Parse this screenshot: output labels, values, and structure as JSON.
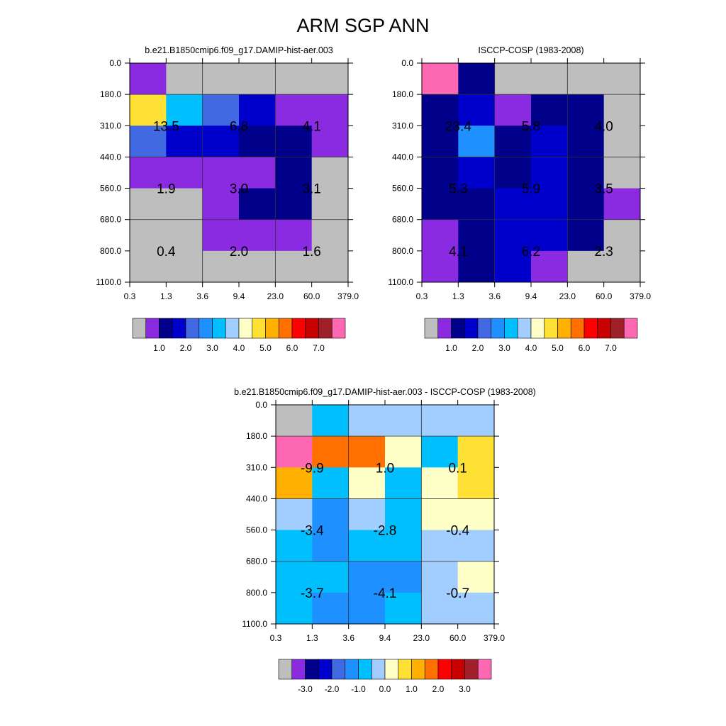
{
  "figure": {
    "title": "ARM SGP ANN"
  },
  "chart_data": [
    {
      "type": "heatmap",
      "title": "b.e21.B1850cmip6.f09_g17.DAMIP-hist-aer.003",
      "x_tick_labels": [
        "0.3",
        "1.3",
        "3.6",
        "9.4",
        "23.0",
        "60.0",
        "379.0"
      ],
      "y_tick_labels": [
        "0.0",
        "180.0",
        "310.0",
        "440.0",
        "560.0",
        "680.0",
        "800.0",
        "1100.0"
      ],
      "cell_colors": [
        [
          "#8A2BE2",
          "#BEBEBE",
          "#BEBEBE",
          "#BEBEBE",
          "#BEBEBE",
          "#BEBEBE"
        ],
        [
          "#FFE135",
          "#00BFFF",
          "#4169E1",
          "#0000CD",
          "#8A2BE2",
          "#8A2BE2"
        ],
        [
          "#4169E1",
          "#0000CD",
          "#0000CD",
          "#00008B",
          "#00008B",
          "#8A2BE2"
        ],
        [
          "#8A2BE2",
          "#8A2BE2",
          "#8A2BE2",
          "#8A2BE2",
          "#00008B",
          "#BEBEBE"
        ],
        [
          "#BEBEBE",
          "#BEBEBE",
          "#8A2BE2",
          "#00008B",
          "#00008B",
          "#BEBEBE"
        ],
        [
          "#BEBEBE",
          "#BEBEBE",
          "#8A2BE2",
          "#8A2BE2",
          "#8A2BE2",
          "#BEBEBE"
        ],
        [
          "#BEBEBE",
          "#BEBEBE",
          "#BEBEBE",
          "#BEBEBE",
          "#BEBEBE",
          "#BEBEBE"
        ]
      ],
      "block_values": [
        {
          "text": "13.5",
          "x_block": 0,
          "y_block": 0
        },
        {
          "text": "6.8",
          "x_block": 1,
          "y_block": 0
        },
        {
          "text": "4.1",
          "x_block": 2,
          "y_block": 0
        },
        {
          "text": "1.9",
          "x_block": 0,
          "y_block": 1
        },
        {
          "text": "3.0",
          "x_block": 1,
          "y_block": 1
        },
        {
          "text": "3.1",
          "x_block": 2,
          "y_block": 1
        },
        {
          "text": "0.4",
          "x_block": 0,
          "y_block": 2
        },
        {
          "text": "2.0",
          "x_block": 1,
          "y_block": 2
        },
        {
          "text": "1.6",
          "x_block": 2,
          "y_block": 2
        }
      ],
      "colorbar": {
        "colors": [
          "#BEBEBE",
          "#8A2BE2",
          "#00008B",
          "#0000CD",
          "#4169E1",
          "#1E90FF",
          "#00BFFF",
          "#A2CDFF",
          "#FFFFC8",
          "#FFE135",
          "#FFB000",
          "#FF7000",
          "#FF0000",
          "#C80000",
          "#A0202A",
          "#FF69B4"
        ],
        "labels": [
          "1.0",
          "2.0",
          "3.0",
          "4.0",
          "5.0",
          "6.0",
          "7.0"
        ]
      }
    },
    {
      "type": "heatmap",
      "title": "ISCCP-COSP (1983-2008)",
      "x_tick_labels": [
        "0.3",
        "1.3",
        "3.6",
        "9.4",
        "23.0",
        "60.0",
        "379.0"
      ],
      "y_tick_labels": [
        "0.0",
        "180.0",
        "310.0",
        "440.0",
        "560.0",
        "680.0",
        "800.0",
        "1100.0"
      ],
      "cell_colors": [
        [
          "#FF69B4",
          "#00008B",
          "#BEBEBE",
          "#BEBEBE",
          "#BEBEBE",
          "#BEBEBE"
        ],
        [
          "#00008B",
          "#0000CD",
          "#8A2BE2",
          "#00008B",
          "#00008B",
          "#BEBEBE"
        ],
        [
          "#00008B",
          "#1E90FF",
          "#00008B",
          "#0000CD",
          "#00008B",
          "#BEBEBE"
        ],
        [
          "#00008B",
          "#0000CD",
          "#00008B",
          "#0000CD",
          "#00008B",
          "#BEBEBE"
        ],
        [
          "#00008B",
          "#00008B",
          "#0000CD",
          "#0000CD",
          "#00008B",
          "#8A2BE2"
        ],
        [
          "#8A2BE2",
          "#00008B",
          "#0000CD",
          "#0000CD",
          "#00008B",
          "#BEBEBE"
        ],
        [
          "#8A2BE2",
          "#00008B",
          "#0000CD",
          "#8A2BE2",
          "#BEBEBE",
          "#BEBEBE"
        ]
      ],
      "block_values": [
        {
          "text": "23.4",
          "x_block": 0,
          "y_block": 0
        },
        {
          "text": "5.8",
          "x_block": 1,
          "y_block": 0
        },
        {
          "text": "4.0",
          "x_block": 2,
          "y_block": 0
        },
        {
          "text": "5.3",
          "x_block": 0,
          "y_block": 1
        },
        {
          "text": "5.9",
          "x_block": 1,
          "y_block": 1
        },
        {
          "text": "3.5",
          "x_block": 2,
          "y_block": 1
        },
        {
          "text": "4.1",
          "x_block": 0,
          "y_block": 2
        },
        {
          "text": "6.2",
          "x_block": 1,
          "y_block": 2
        },
        {
          "text": "2.3",
          "x_block": 2,
          "y_block": 2
        }
      ],
      "colorbar": {
        "colors": [
          "#BEBEBE",
          "#8A2BE2",
          "#00008B",
          "#0000CD",
          "#4169E1",
          "#1E90FF",
          "#00BFFF",
          "#A2CDFF",
          "#FFFFC8",
          "#FFE135",
          "#FFB000",
          "#FF7000",
          "#FF0000",
          "#C80000",
          "#A0202A",
          "#FF69B4"
        ],
        "labels": [
          "1.0",
          "2.0",
          "3.0",
          "4.0",
          "5.0",
          "6.0",
          "7.0"
        ]
      }
    },
    {
      "type": "heatmap",
      "title": "b.e21.B1850cmip6.f09_g17.DAMIP-hist-aer.003 - ISCCP-COSP (1983-2008)",
      "x_tick_labels": [
        "0.3",
        "1.3",
        "3.6",
        "9.4",
        "23.0",
        "60.0",
        "379.0"
      ],
      "y_tick_labels": [
        "0.0",
        "180.0",
        "310.0",
        "440.0",
        "560.0",
        "680.0",
        "800.0",
        "1100.0"
      ],
      "cell_colors": [
        [
          "#BEBEBE",
          "#00BFFF",
          "#A2CDFF",
          "#A2CDFF",
          "#A2CDFF",
          "#A2CDFF"
        ],
        [
          "#FF69B4",
          "#FF7000",
          "#FF7000",
          "#FFFFC8",
          "#00BFFF",
          "#FFE135"
        ],
        [
          "#FFB000",
          "#00BFFF",
          "#FFFFC8",
          "#00BFFF",
          "#FFFFC8",
          "#FFE135"
        ],
        [
          "#A2CDFF",
          "#1E90FF",
          "#A2CDFF",
          "#00BFFF",
          "#FFFFC8",
          "#FFFFC8"
        ],
        [
          "#00BFFF",
          "#1E90FF",
          "#00BFFF",
          "#00BFFF",
          "#A2CDFF",
          "#A2CDFF"
        ],
        [
          "#00BFFF",
          "#00BFFF",
          "#1E90FF",
          "#1E90FF",
          "#A2CDFF",
          "#FFFFC8"
        ],
        [
          "#00BFFF",
          "#1E90FF",
          "#1E90FF",
          "#00BFFF",
          "#A2CDFF",
          "#A2CDFF"
        ]
      ],
      "block_values": [
        {
          "text": "-9.9",
          "x_block": 0,
          "y_block": 0
        },
        {
          "text": "1.0",
          "x_block": 1,
          "y_block": 0
        },
        {
          "text": "0.1",
          "x_block": 2,
          "y_block": 0
        },
        {
          "text": "-3.4",
          "x_block": 0,
          "y_block": 1
        },
        {
          "text": "-2.8",
          "x_block": 1,
          "y_block": 1
        },
        {
          "text": "-0.4",
          "x_block": 2,
          "y_block": 1
        },
        {
          "text": "-3.7",
          "x_block": 0,
          "y_block": 2
        },
        {
          "text": "-4.1",
          "x_block": 1,
          "y_block": 2
        },
        {
          "text": "-0.7",
          "x_block": 2,
          "y_block": 2
        }
      ],
      "colorbar": {
        "colors": [
          "#BEBEBE",
          "#8A2BE2",
          "#00008B",
          "#0000CD",
          "#4169E1",
          "#1E90FF",
          "#00BFFF",
          "#A2CDFF",
          "#FFFFC8",
          "#FFE135",
          "#FFB000",
          "#FF7000",
          "#FF0000",
          "#C80000",
          "#A0202A",
          "#FF69B4"
        ],
        "labels": [
          "-3.0",
          "-2.0",
          "-1.0",
          "0.0",
          "1.0",
          "2.0",
          "3.0"
        ]
      }
    }
  ]
}
